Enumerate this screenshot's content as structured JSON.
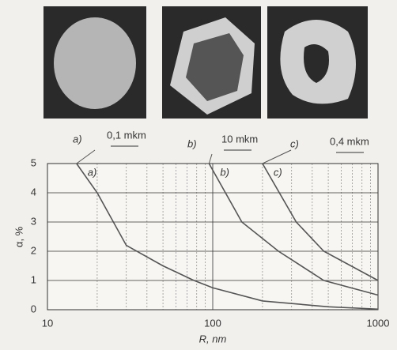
{
  "panels": [
    {
      "label": "a)",
      "scale": "0,1 mkm"
    },
    {
      "label": "b)",
      "scale": "10 mkm"
    },
    {
      "label": "c)",
      "scale": "0,4 mkm"
    }
  ],
  "chart_data": {
    "type": "line",
    "x_label": "R, nm",
    "y_label": "α, %",
    "x_scale": "log",
    "xlim": [
      10,
      1000
    ],
    "xticks": [
      10,
      100,
      1000
    ],
    "ylim": [
      0,
      5
    ],
    "yticks": [
      0,
      1,
      2,
      3,
      4,
      5
    ],
    "grid": true,
    "minor_grid": true,
    "series": [
      {
        "name": "a)",
        "color": "#555555",
        "x": [
          15,
          20,
          30,
          50,
          77,
          100,
          200,
          500,
          1000
        ],
        "values": [
          5,
          4,
          2.2,
          1.5,
          1,
          0.75,
          0.3,
          0.1,
          0.02
        ]
      },
      {
        "name": "b)",
        "color": "#555555",
        "x": [
          95,
          150,
          250,
          470,
          1000
        ],
        "values": [
          5,
          3,
          2,
          1,
          0.5
        ]
      },
      {
        "name": "c)",
        "color": "#555555",
        "x": [
          200,
          320,
          470,
          1000
        ],
        "values": [
          5,
          3,
          2,
          1
        ]
      }
    ]
  }
}
